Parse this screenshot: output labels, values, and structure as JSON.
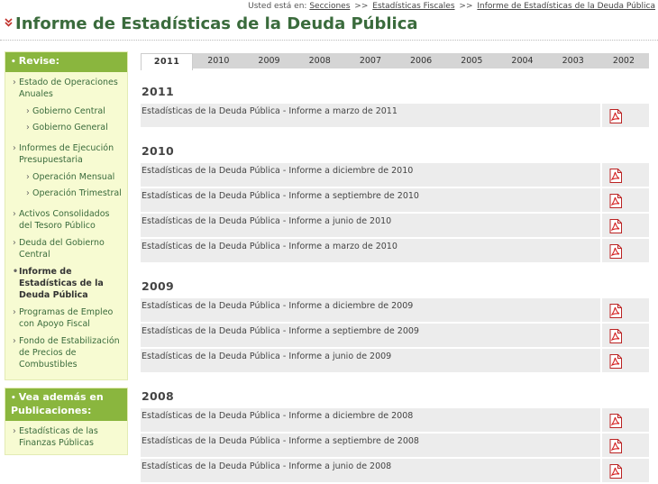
{
  "breadcrumb": {
    "prefix": "Usted está en:",
    "items": [
      "Secciones",
      "Estadísticas Fiscales",
      "Informe de Estadísticas de la Deuda Pública"
    ],
    "separator": ">>"
  },
  "page": {
    "title": "Informe de Estadísticas de la Deuda Pública"
  },
  "sidebar": {
    "revise_title": "Revise:",
    "items": [
      {
        "label": "Estado de Operaciones Anuales",
        "level": 0
      },
      {
        "label": "Gobierno Central",
        "level": 1
      },
      {
        "label": "Gobierno General",
        "level": 1
      },
      {
        "label": "Informes de Ejecución Presupuestaria",
        "level": 0
      },
      {
        "label": "Operación Mensual",
        "level": 1
      },
      {
        "label": "Operación Trimestral",
        "level": 1
      },
      {
        "label": "Activos Consolidados del Tesoro Público",
        "level": 0
      },
      {
        "label": "Deuda del Gobierno Central",
        "level": 0
      },
      {
        "label": "Informe de Estadísticas de la Deuda Pública",
        "level": 0
      },
      {
        "label": "Programas de Empleo con Apoyo Fiscal",
        "level": 0
      },
      {
        "label": "Fondo de Estabilización de Precios de Combustibles",
        "level": 0
      }
    ],
    "see_also_title": "Vea además en Publicaciones:",
    "see_also_items": [
      "Estadísticas de las Finanzas Públicas"
    ]
  },
  "tabs": [
    "2011",
    "2010",
    "2009",
    "2008",
    "2007",
    "2006",
    "2005",
    "2004",
    "2003",
    "2002"
  ],
  "active_tab": "2011",
  "sections": [
    {
      "year": "2011",
      "reports": [
        "Estadísticas de la Deuda Pública - Informe a marzo de 2011"
      ]
    },
    {
      "year": "2010",
      "reports": [
        "Estadísticas de la Deuda Pública - Informe a diciembre de 2010",
        "Estadísticas de la Deuda Pública - Informe a septiembre de 2010",
        "Estadísticas de la Deuda Pública - Informe a junio de 2010",
        "Estadísticas de la Deuda Pública - Informe a marzo de 2010"
      ]
    },
    {
      "year": "2009",
      "reports": [
        "Estadísticas de la Deuda Pública - Informe a diciembre de 2009",
        "Estadísticas de la Deuda Pública - Informe a septiembre de 2009",
        "Estadísticas de la Deuda Pública - Informe a junio de 2009"
      ]
    },
    {
      "year": "2008",
      "reports": [
        "Estadísticas de la Deuda Pública - Informe a diciembre de 2008",
        "Estadísticas de la Deuda Pública - Informe a septiembre de 2008",
        "Estadísticas de la Deuda Pública - Informe a junio de 2008"
      ]
    }
  ],
  "icons": {
    "pdf": "pdf-file-icon",
    "title_mark": "double-chevron-down-icon"
  },
  "colors": {
    "accent_green": "#8ab63e",
    "title_green": "#3a6b3c",
    "sidebar_bg": "#f7fbd2",
    "pdf_red": "#d42020"
  }
}
